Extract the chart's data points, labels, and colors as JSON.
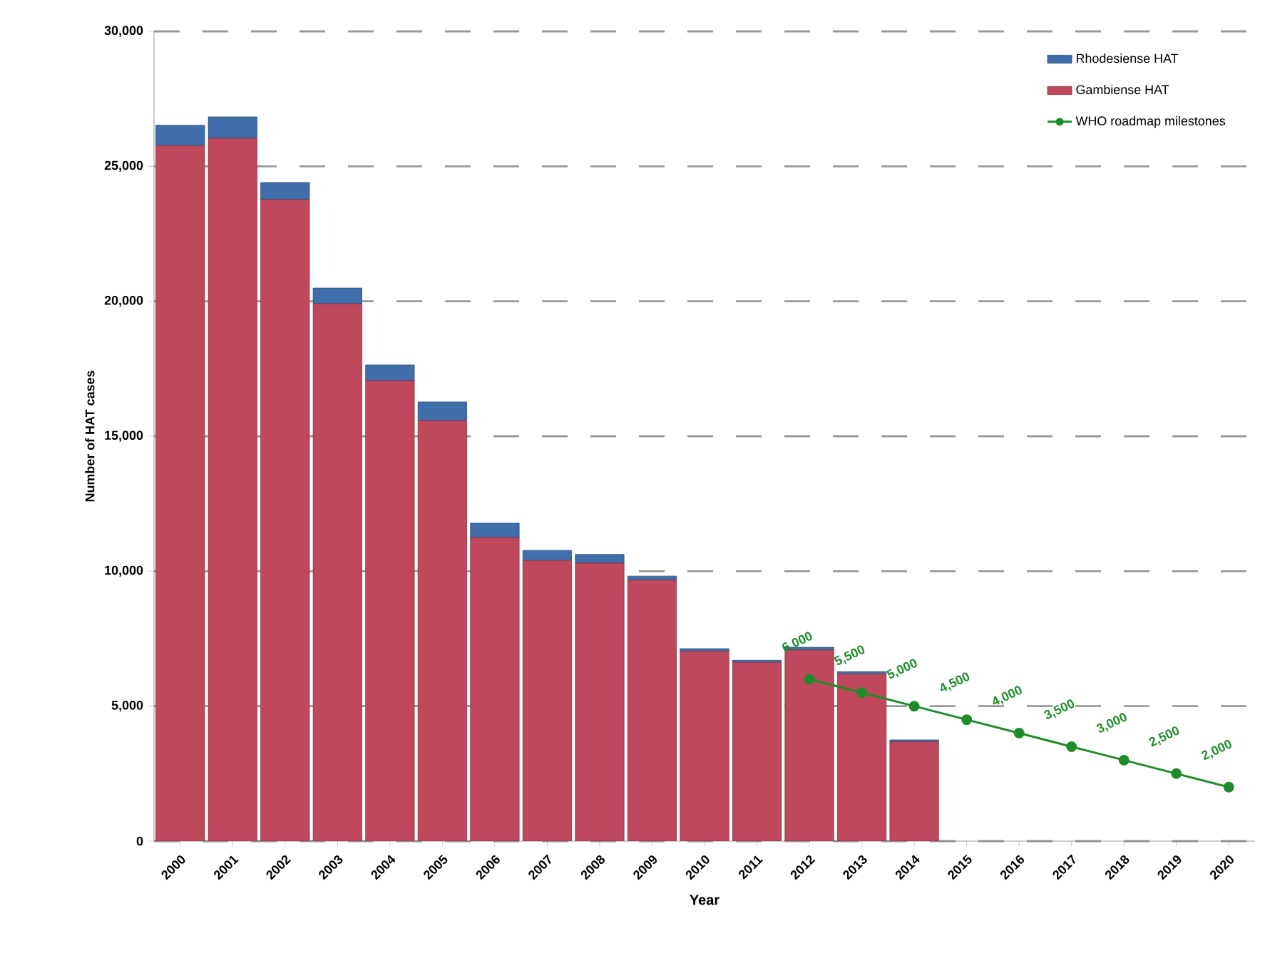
{
  "chart_data": {
    "type": "bar",
    "stacked": true,
    "xlabel": "Year",
    "ylabel": "Number of HAT cases",
    "categories": [
      "2000",
      "2001",
      "2002",
      "2003",
      "2004",
      "2005",
      "2006",
      "2007",
      "2008",
      "2009",
      "2010",
      "2011",
      "2012",
      "2013",
      "2014",
      "2015",
      "2016",
      "2017",
      "2018",
      "2019",
      "2020"
    ],
    "series": [
      {
        "name": "Gambiense HAT",
        "color": "#c0485d",
        "values": [
          25770,
          26040,
          23770,
          19910,
          17060,
          15580,
          11250,
          10400,
          10300,
          9670,
          7030,
          6620,
          7080,
          6190,
          3680,
          null,
          null,
          null,
          null,
          null,
          null
        ]
      },
      {
        "name": "Rhodesiense HAT",
        "color": "#3f6eaa",
        "values": [
          750,
          790,
          630,
          580,
          580,
          690,
          530,
          370,
          320,
          150,
          100,
          80,
          100,
          90,
          70,
          null,
          null,
          null,
          null,
          null,
          null
        ]
      },
      {
        "name": "WHO roadmap milestones",
        "type": "line",
        "color": "#1e8c2a",
        "marker": "circle",
        "line_style": "solid",
        "values": [
          null,
          null,
          null,
          null,
          null,
          null,
          null,
          null,
          null,
          null,
          null,
          null,
          6000,
          5500,
          5000,
          4500,
          4000,
          3500,
          3000,
          2500,
          2000
        ],
        "value_labels": [
          null,
          null,
          null,
          null,
          null,
          null,
          null,
          null,
          null,
          null,
          null,
          null,
          "6,000",
          "5,500",
          "5,000",
          "4,500",
          "4,000",
          "3,500",
          "3,000",
          "2,500",
          "2,000"
        ]
      }
    ],
    "ylim": [
      0,
      30000
    ],
    "yticks": [
      0,
      {
        "value": 5000,
        "label": "5,000"
      },
      {
        "value": 10000,
        "label": "10,000"
      },
      {
        "value": 15000,
        "label": "15,000"
      },
      {
        "value": 20000,
        "label": "20,000"
      },
      {
        "value": 25000,
        "label": "25,000"
      },
      {
        "value": 30000,
        "label": "30,000"
      }
    ],
    "grid": "y",
    "legend": "top right"
  }
}
